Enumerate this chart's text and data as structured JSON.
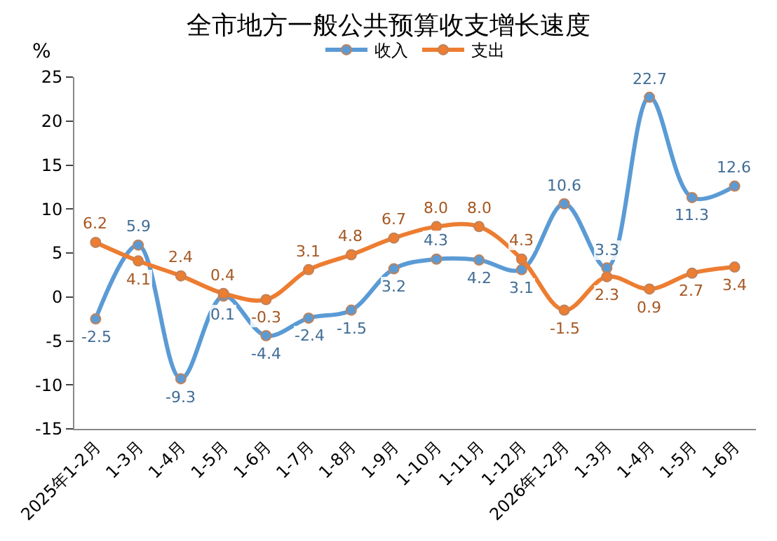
{
  "chart_data": {
    "type": "line",
    "title": "全市地方一般公共预算收支增长速度",
    "ylabel": "%",
    "categories": [
      "2025年1-2月",
      "1-3月",
      "1-4月",
      "1-5月",
      "1-6月",
      "1-7月",
      "1-8月",
      "1-9月",
      "1-10月",
      "1-11月",
      "1-12月",
      "2026年1-2月",
      "1-3月",
      "1-4月",
      "1-5月",
      "1-6月"
    ],
    "series": [
      {
        "name": "收入",
        "color": "#5b9bd5",
        "values": [
          -2.5,
          5.9,
          -9.3,
          0.1,
          -4.4,
          -2.4,
          -1.5,
          3.2,
          4.3,
          4.2,
          3.1,
          10.6,
          3.3,
          22.7,
          11.3,
          12.6
        ],
        "value_labels": [
          "-2.5",
          "5.9",
          "-9.3",
          "0.1",
          "-4.4",
          "-2.4",
          "-1.5",
          "3.2",
          "4.3",
          "4.2",
          "3.1",
          "10.6",
          "3.3",
          "22.7",
          "11.3",
          "12.6"
        ]
      },
      {
        "name": "支出",
        "color": "#ed7d31",
        "values": [
          6.2,
          4.1,
          2.4,
          0.4,
          -0.3,
          3.1,
          4.8,
          6.7,
          8.0,
          8.0,
          4.3,
          -1.5,
          2.3,
          0.9,
          2.7,
          3.4
        ],
        "value_labels": [
          "6.2",
          "4.1",
          "2.4",
          "0.4",
          "-0.3",
          "3.1",
          "4.8",
          "6.7",
          "8.0",
          "8.0",
          "4.3",
          "-1.5",
          "2.3",
          "0.9",
          "2.7",
          "3.4"
        ]
      }
    ],
    "ylim": [
      -15,
      25
    ],
    "yticks": [
      -15,
      -10,
      -5,
      0,
      5,
      10,
      15,
      20,
      25
    ],
    "legend": "top",
    "marker": "circle",
    "line_style": "solid"
  }
}
